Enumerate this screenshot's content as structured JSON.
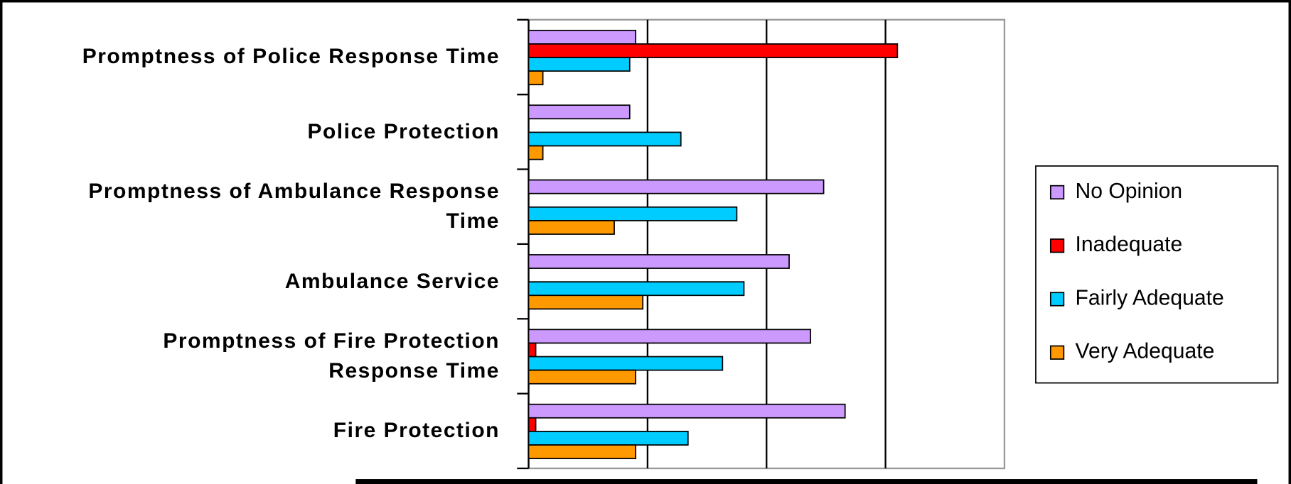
{
  "chart_data": {
    "type": "hbar",
    "categories": [
      "Promptness of Police Response Time",
      "Police Protection",
      "Promptness of Ambulance Response Time",
      "Ambulance Service",
      "Promptness of Fire Protection Response Time",
      "Fire Protection"
    ],
    "series": [
      {
        "name": "No Opinion",
        "color": "#cc99ff",
        "values": [
          9.0,
          8.5,
          24.8,
          21.9,
          23.7,
          26.6
        ]
      },
      {
        "name": "Inadequate",
        "color": "#ff0000",
        "values": [
          31.0,
          0,
          0,
          0,
          0.6,
          0.6
        ]
      },
      {
        "name": "Fairly Adequate",
        "color": "#00ccff",
        "values": [
          8.5,
          12.8,
          17.5,
          18.1,
          16.3,
          13.4
        ]
      },
      {
        "name": "Very Adequate",
        "color": "#ff9900",
        "values": [
          1.2,
          1.2,
          7.2,
          9.6,
          9.0,
          9.0
        ]
      }
    ],
    "xlim": [
      0,
      40
    ],
    "xticks": [
      0,
      10,
      20,
      30,
      40
    ],
    "grid": true,
    "legend": "right"
  }
}
